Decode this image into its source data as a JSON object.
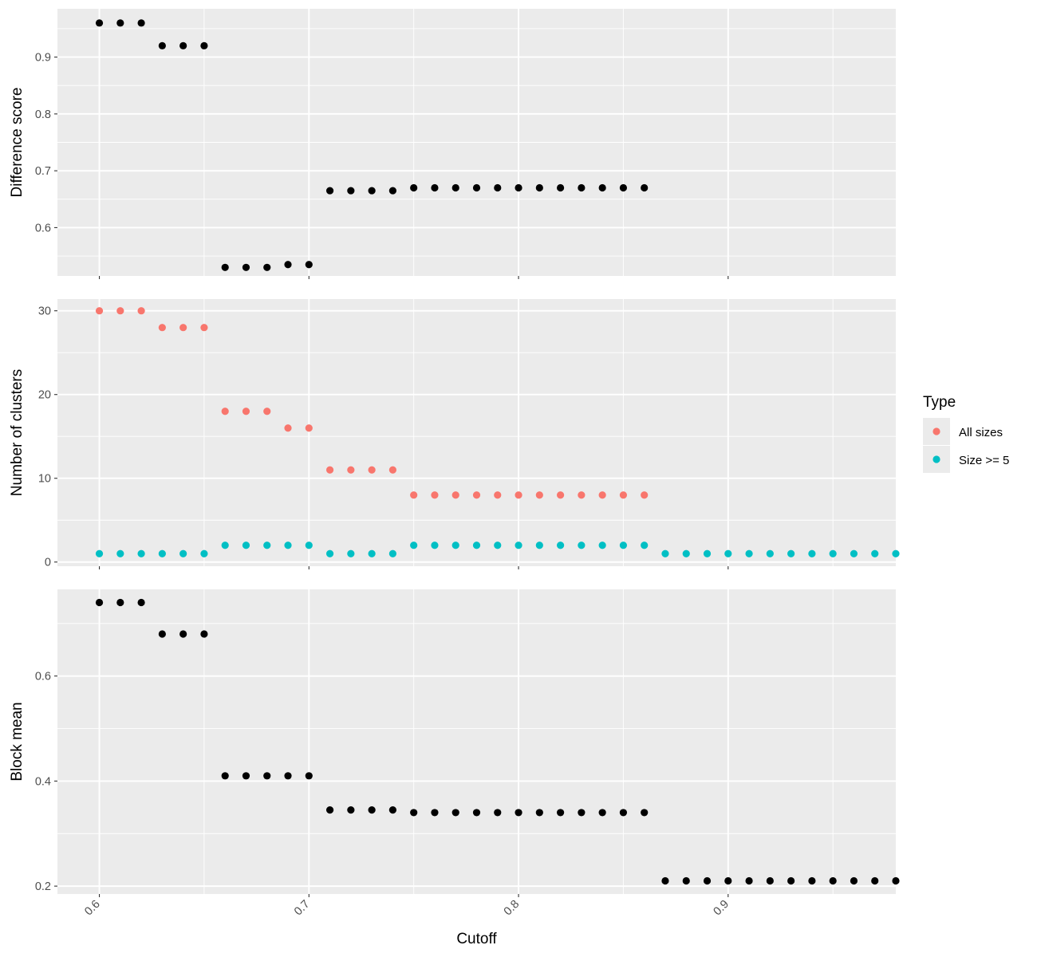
{
  "chart_data": [
    {
      "type": "scatter",
      "ylabel": "Difference score",
      "xlim": [
        0.58,
        0.98
      ],
      "ylim": [
        0.515,
        0.985
      ],
      "yticks": [
        0.6,
        0.7,
        0.8,
        0.9
      ],
      "ytick_labels": [
        "0.6",
        "0.7",
        "0.8",
        "0.9"
      ],
      "grid": true,
      "series": [
        {
          "color": "#000000",
          "x": [
            0.6,
            0.61,
            0.62,
            0.63,
            0.64,
            0.65,
            0.66,
            0.67,
            0.68,
            0.69,
            0.7,
            0.71,
            0.72,
            0.73,
            0.74,
            0.75,
            0.76,
            0.77,
            0.78,
            0.79,
            0.8,
            0.81,
            0.82,
            0.83,
            0.84,
            0.85,
            0.86
          ],
          "y": [
            0.96,
            0.96,
            0.96,
            0.92,
            0.92,
            0.92,
            0.53,
            0.53,
            0.53,
            0.535,
            0.535,
            0.665,
            0.665,
            0.665,
            0.665,
            0.67,
            0.67,
            0.67,
            0.67,
            0.67,
            0.67,
            0.67,
            0.67,
            0.67,
            0.67,
            0.67,
            0.67
          ]
        }
      ]
    },
    {
      "type": "scatter",
      "ylabel": "Number of clusters",
      "xlim": [
        0.58,
        0.98
      ],
      "ylim": [
        -0.5,
        31.4
      ],
      "yticks": [
        0,
        10,
        20,
        30
      ],
      "ytick_labels": [
        "0",
        "10",
        "20",
        "30"
      ],
      "grid": true,
      "series": [
        {
          "name": "All sizes",
          "color": "#F8766D",
          "x": [
            0.6,
            0.61,
            0.62,
            0.63,
            0.64,
            0.65,
            0.66,
            0.67,
            0.68,
            0.69,
            0.7,
            0.71,
            0.72,
            0.73,
            0.74,
            0.75,
            0.76,
            0.77,
            0.78,
            0.79,
            0.8,
            0.81,
            0.82,
            0.83,
            0.84,
            0.85,
            0.86
          ],
          "y": [
            30,
            30,
            30,
            28,
            28,
            28,
            18,
            18,
            18,
            16,
            16,
            11,
            11,
            11,
            11,
            8,
            8,
            8,
            8,
            8,
            8,
            8,
            8,
            8,
            8,
            8,
            8
          ]
        },
        {
          "name": "Size >= 5",
          "color": "#00BFC4",
          "x": [
            0.6,
            0.61,
            0.62,
            0.63,
            0.64,
            0.65,
            0.66,
            0.67,
            0.68,
            0.69,
            0.7,
            0.71,
            0.72,
            0.73,
            0.74,
            0.75,
            0.76,
            0.77,
            0.78,
            0.79,
            0.8,
            0.81,
            0.82,
            0.83,
            0.84,
            0.85,
            0.86,
            0.87,
            0.88,
            0.89,
            0.9,
            0.91,
            0.92,
            0.93,
            0.94,
            0.95,
            0.96,
            0.97,
            0.98
          ],
          "y": [
            1,
            1,
            1,
            1,
            1,
            1,
            2,
            2,
            2,
            2,
            2,
            1,
            1,
            1,
            1,
            2,
            2,
            2,
            2,
            2,
            2,
            2,
            2,
            2,
            2,
            2,
            2,
            1,
            1,
            1,
            1,
            1,
            1,
            1,
            1,
            1,
            1,
            1,
            1
          ]
        }
      ]
    },
    {
      "type": "scatter",
      "ylabel": "Block mean",
      "xlabel": "Cutoff",
      "xlim": [
        0.58,
        0.98
      ],
      "ylim": [
        0.185,
        0.765
      ],
      "yticks": [
        0.2,
        0.4,
        0.6
      ],
      "ytick_labels": [
        "0.2",
        "0.4",
        "0.6"
      ],
      "grid": true,
      "series": [
        {
          "color": "#000000",
          "x": [
            0.6,
            0.61,
            0.62,
            0.63,
            0.64,
            0.65,
            0.66,
            0.67,
            0.68,
            0.69,
            0.7,
            0.71,
            0.72,
            0.73,
            0.74,
            0.75,
            0.76,
            0.77,
            0.78,
            0.79,
            0.8,
            0.81,
            0.82,
            0.83,
            0.84,
            0.85,
            0.86,
            0.87,
            0.88,
            0.89,
            0.9,
            0.91,
            0.92,
            0.93,
            0.94,
            0.95,
            0.96,
            0.97,
            0.98
          ],
          "y": [
            0.74,
            0.74,
            0.74,
            0.68,
            0.68,
            0.68,
            0.41,
            0.41,
            0.41,
            0.41,
            0.41,
            0.345,
            0.345,
            0.345,
            0.345,
            0.34,
            0.34,
            0.34,
            0.34,
            0.34,
            0.34,
            0.34,
            0.34,
            0.34,
            0.34,
            0.34,
            0.34,
            0.21,
            0.21,
            0.21,
            0.21,
            0.21,
            0.21,
            0.21,
            0.21,
            0.21,
            0.21,
            0.21,
            0.21
          ]
        }
      ]
    }
  ],
  "shared_x": {
    "title": "Cutoff",
    "ticks": [
      0.6,
      0.7,
      0.8,
      0.9
    ],
    "tick_labels": [
      "0.6",
      "0.7",
      "0.8",
      "0.9"
    ],
    "minor_ticks": [
      0.65,
      0.75,
      0.85,
      0.95
    ]
  },
  "legend": {
    "title": "Type",
    "position": "right",
    "items": [
      {
        "label": "All sizes",
        "color": "#F8766D"
      },
      {
        "label": "Size >= 5",
        "color": "#00BFC4"
      }
    ]
  }
}
